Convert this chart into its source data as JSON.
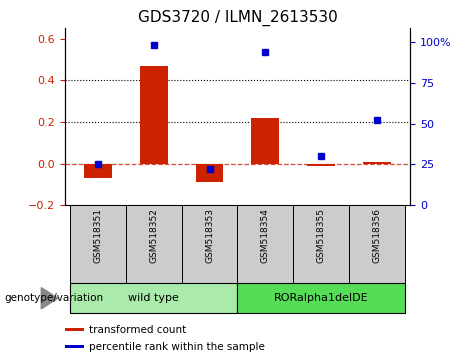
{
  "title": "GDS3720 / ILMN_2613530",
  "samples": [
    "GSM518351",
    "GSM518352",
    "GSM518353",
    "GSM518354",
    "GSM518355",
    "GSM518356"
  ],
  "bar_values": [
    -0.07,
    0.47,
    -0.09,
    0.22,
    -0.01,
    0.01
  ],
  "dot_values": [
    25,
    98,
    22,
    94,
    30,
    52
  ],
  "bar_color": "#cc2200",
  "dot_color": "#0000cc",
  "zero_line_color": "#cc2200",
  "ylim_left": [
    -0.2,
    0.65
  ],
  "ylim_right": [
    0,
    108.333
  ],
  "yticks_left": [
    -0.2,
    0.0,
    0.2,
    0.4,
    0.6
  ],
  "yticks_right": [
    0,
    25,
    50,
    75,
    100
  ],
  "ytick_labels_right": [
    "0",
    "25",
    "50",
    "75",
    "100%"
  ],
  "hlines": [
    0.2,
    0.4
  ],
  "groups": [
    {
      "label": "wild type",
      "indices": [
        0,
        1,
        2
      ],
      "color": "#aaeaaa"
    },
    {
      "label": "RORalpha1delDE",
      "indices": [
        3,
        4,
        5
      ],
      "color": "#55dd55"
    }
  ],
  "group_label_prefix": "genotype/variation",
  "legend_items": [
    {
      "label": "transformed count",
      "color": "#cc2200"
    },
    {
      "label": "percentile rank within the sample",
      "color": "#0000cc"
    }
  ],
  "bar_width": 0.5,
  "title_fontsize": 11,
  "tick_label_fontsize": 8,
  "background_color": "#ffffff",
  "plot_bg_color": "#ffffff",
  "tick_box_color": "#cccccc"
}
